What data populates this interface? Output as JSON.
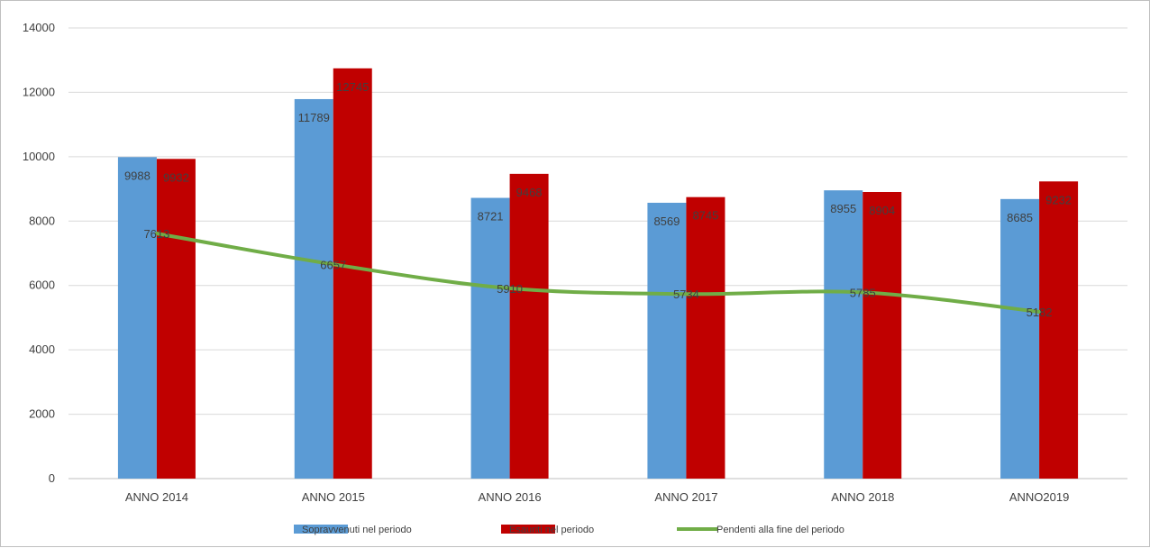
{
  "chart_data": {
    "type": "bar",
    "categories": [
      "ANNO 2014",
      "ANNO 2015",
      "ANNO 2016",
      "ANNO 2017",
      "ANNO 2018",
      "ANNO2019"
    ],
    "series": [
      {
        "name": "Sopravvenuti nel periodo",
        "type": "bar",
        "color": "#5b9bd5",
        "values": [
          9988,
          11789,
          8721,
          8569,
          8955,
          8685
        ],
        "labels": [
          "9988",
          "11789",
          "8721",
          "8569",
          "8955",
          "8685"
        ]
      },
      {
        "name": "Esauriti nel periodo",
        "type": "bar",
        "color": "#c00000",
        "values": [
          9932,
          12745,
          9468,
          8745,
          8904,
          9232
        ],
        "labels": [
          "9932",
          "12745",
          "9468",
          "8745",
          "8904",
          "9232"
        ]
      },
      {
        "name": "Pendenti alla fine del periodo",
        "type": "line",
        "color": "#70ad47",
        "values": [
          7613,
          6657,
          5910,
          5734,
          5785,
          5182
        ],
        "labels": [
          "7613",
          "6657",
          "5910",
          "5734",
          "5785",
          "5182"
        ]
      }
    ],
    "ylim": [
      0,
      14000
    ],
    "yticks": [
      0,
      2000,
      4000,
      6000,
      8000,
      10000,
      12000,
      14000
    ],
    "ytick_labels": [
      "0",
      "2000",
      "4000",
      "6000",
      "8000",
      "10000",
      "12000",
      "14000"
    ],
    "grid": true,
    "legend": "bottom"
  }
}
